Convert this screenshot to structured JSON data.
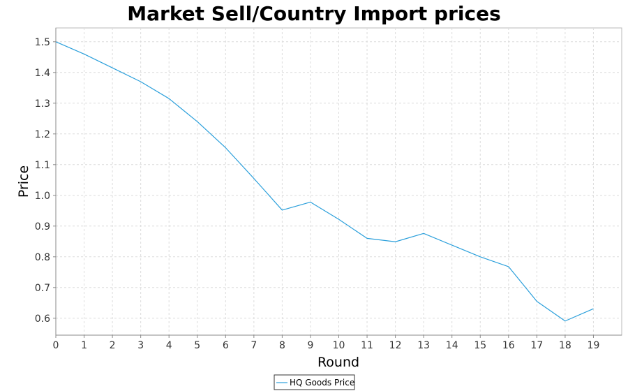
{
  "chart_data": {
    "type": "line",
    "title": "Market Sell/Country Import prices",
    "xlabel": "Round",
    "ylabel": "Price",
    "x": [
      0,
      1,
      2,
      3,
      4,
      5,
      6,
      7,
      8,
      9,
      10,
      11,
      12,
      13,
      14,
      15,
      16,
      17,
      18,
      19
    ],
    "series": [
      {
        "name": "HQ Goods Price",
        "color": "#2a9fdb",
        "values": [
          1.5,
          1.46,
          1.415,
          1.37,
          1.315,
          1.24,
          1.155,
          1.055,
          0.952,
          0.978,
          0.922,
          0.86,
          0.849,
          0.876,
          0.838,
          0.8,
          0.768,
          0.655,
          0.591,
          0.631
        ]
      }
    ],
    "xlim": [
      0,
      20
    ],
    "ylim": [
      0.545,
      1.545
    ],
    "x_ticks": [
      0,
      1,
      2,
      3,
      4,
      5,
      6,
      7,
      8,
      9,
      10,
      11,
      12,
      13,
      14,
      15,
      16,
      17,
      18,
      19
    ],
    "y_ticks": [
      0.6,
      0.7,
      0.8,
      0.9,
      1.0,
      1.1,
      1.2,
      1.3,
      1.4,
      1.5
    ],
    "y_tick_labels": [
      "0.6",
      "0.7",
      "0.8",
      "0.9",
      "1.0",
      "1.1",
      "1.2",
      "1.3",
      "1.4",
      "1.5"
    ],
    "grid": true,
    "legend_position": "bottom-center"
  }
}
